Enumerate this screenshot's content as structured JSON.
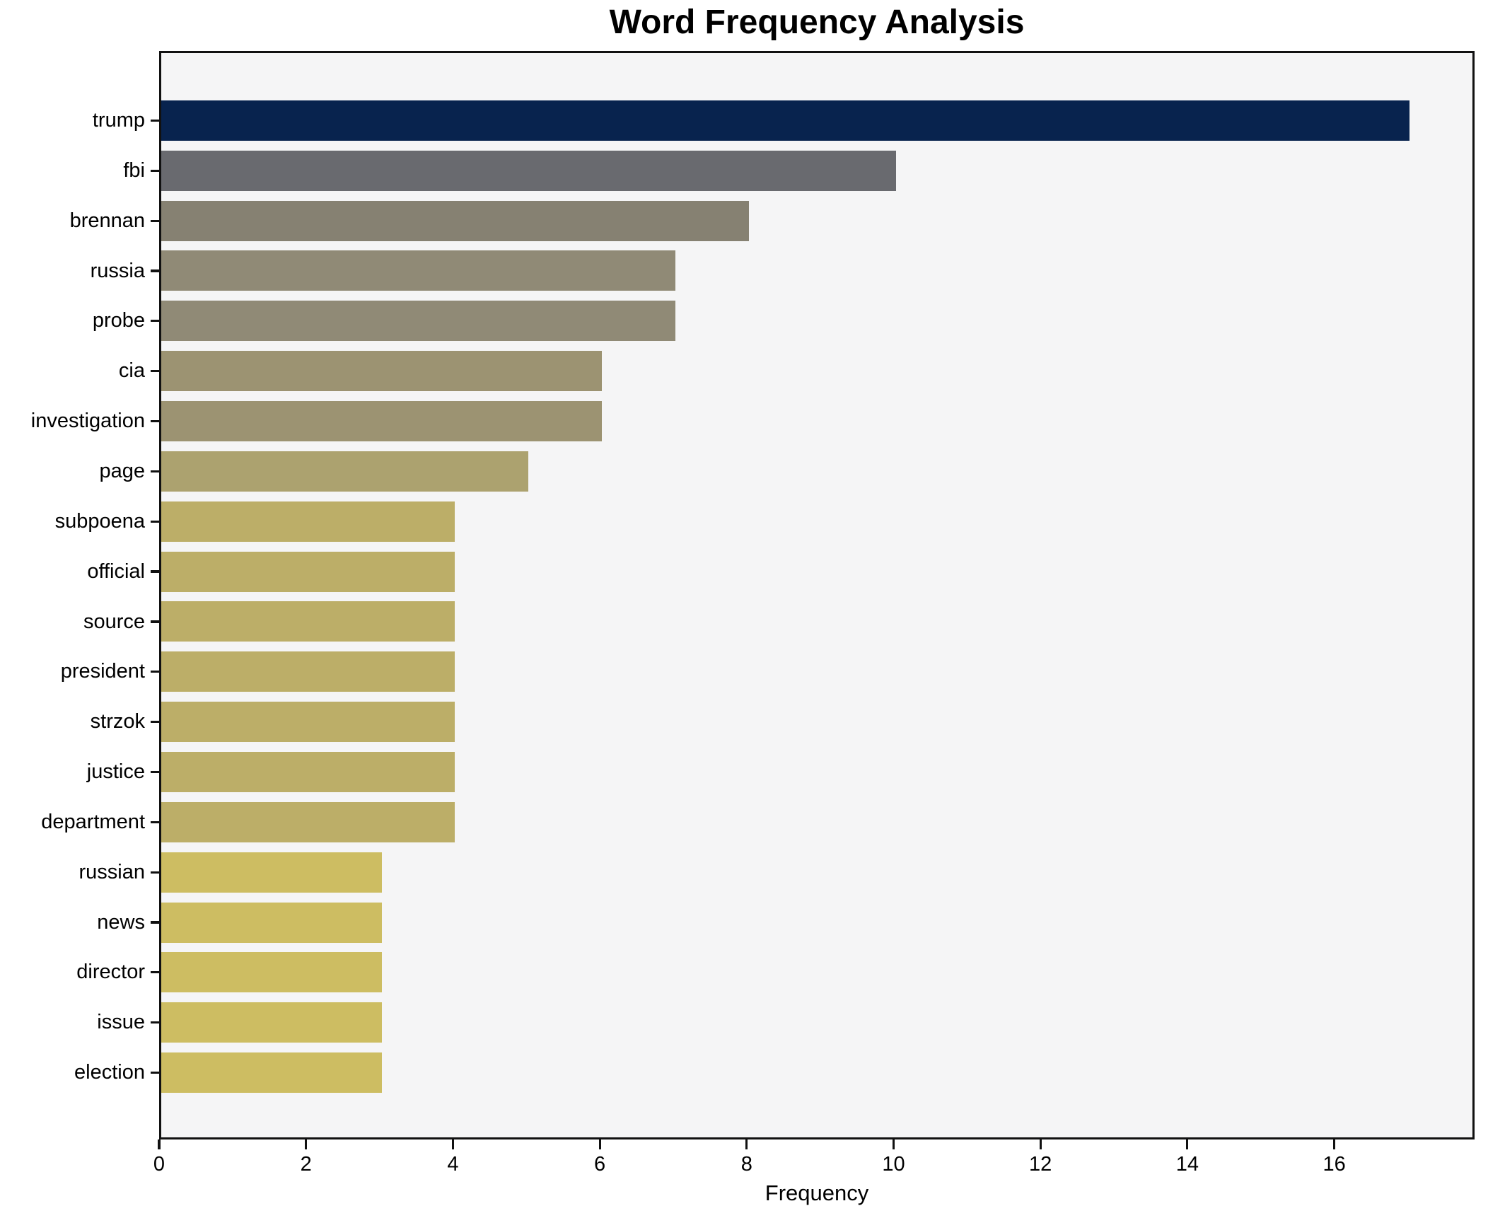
{
  "figure": {
    "background": "#ffffff"
  },
  "chart_data": {
    "type": "bar",
    "orientation": "horizontal",
    "title": "Word Frequency Analysis",
    "xlabel": "Frequency",
    "ylabel": "",
    "categories": [
      "trump",
      "fbi",
      "brennan",
      "russia",
      "probe",
      "cia",
      "investigation",
      "page",
      "subpoena",
      "official",
      "source",
      "president",
      "strzok",
      "justice",
      "department",
      "russian",
      "news",
      "director",
      "issue",
      "election"
    ],
    "values": [
      17,
      10,
      8,
      7,
      7,
      6,
      6,
      5,
      4,
      4,
      4,
      4,
      4,
      4,
      4,
      3,
      3,
      3,
      3,
      3
    ],
    "bar_colors": [
      "#08234e",
      "#696a6f",
      "#868172",
      "#908a76",
      "#908a76",
      "#9c9372",
      "#9c9372",
      "#aca26f",
      "#bcae68",
      "#bcae68",
      "#bcae68",
      "#bcae68",
      "#bcae68",
      "#bcae68",
      "#bcae68",
      "#cdbd62",
      "#cdbd62",
      "#cdbd62",
      "#cdbd62",
      "#cdbd62"
    ],
    "xlim": [
      0,
      17.9
    ],
    "xticks": [
      0,
      2,
      4,
      6,
      8,
      10,
      12,
      14,
      16
    ],
    "grid": false,
    "legend": null,
    "plot_background": "#f5f5f6",
    "spine_color": "#111111"
  }
}
